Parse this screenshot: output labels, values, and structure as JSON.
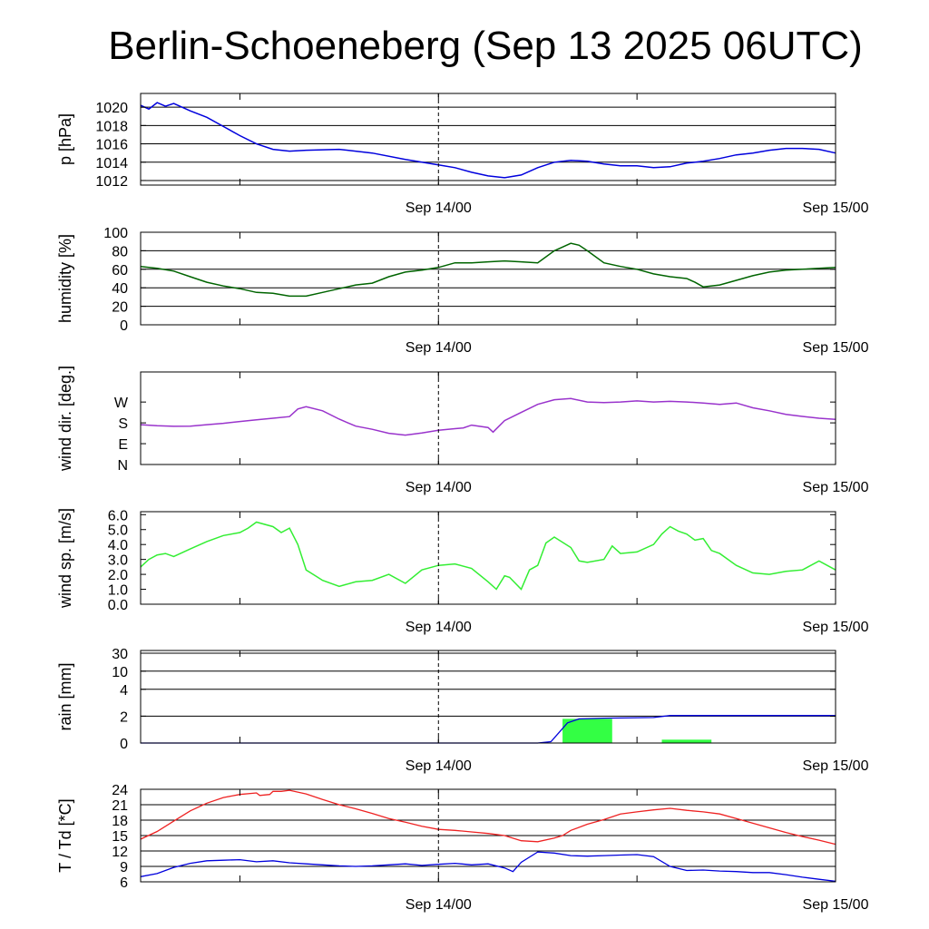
{
  "title": "Berlin-Schoeneberg (Sep 13 2025 06UTC)",
  "x_axis": {
    "start": "Sep 13 06UTC",
    "end": "Sep 15 00UTC",
    "tick_labels": [
      "Sep 14/00",
      "Sep 15/00"
    ],
    "tick_hours": [
      18,
      42
    ],
    "minor_tick_hours": [
      6,
      30
    ],
    "total_hours": 42
  },
  "chart_data": [
    {
      "type": "line",
      "id": "pressure",
      "ylabel": "p [hPa]",
      "ylim": [
        1011.5,
        1021.5
      ],
      "yticks": [
        1012,
        1014,
        1016,
        1018,
        1020
      ],
      "ytick_labels": [
        "1012",
        "1014",
        "1016",
        "1018",
        "1020"
      ],
      "grid": true,
      "color": "#0000dd",
      "x": [
        0,
        0.5,
        1,
        1.5,
        2,
        3,
        4,
        5,
        6,
        7,
        8,
        9,
        10,
        12,
        14,
        16,
        18,
        19,
        20,
        21,
        22,
        23,
        24,
        25,
        26,
        27,
        28,
        29,
        30,
        31,
        32,
        33,
        34,
        35,
        36,
        37,
        38,
        39,
        40,
        41,
        42
      ],
      "values": [
        1020.2,
        1019.8,
        1020.5,
        1020.1,
        1020.4,
        1019.6,
        1018.9,
        1017.9,
        1016.9,
        1016.0,
        1015.4,
        1015.2,
        1015.3,
        1015.4,
        1015.0,
        1014.3,
        1013.7,
        1013.4,
        1012.9,
        1012.5,
        1012.3,
        1012.6,
        1013.4,
        1014.0,
        1014.2,
        1014.1,
        1013.8,
        1013.6,
        1013.6,
        1013.4,
        1013.5,
        1013.9,
        1014.1,
        1014.4,
        1014.8,
        1015.0,
        1015.3,
        1015.5,
        1015.5,
        1015.4,
        1015.0
      ]
    },
    {
      "type": "line",
      "id": "humidity",
      "ylabel": "humidity [%]",
      "ylim": [
        0,
        100
      ],
      "yticks": [
        0,
        20,
        40,
        60,
        80,
        100
      ],
      "ytick_labels": [
        "0",
        "20",
        "40",
        "60",
        "80",
        "100"
      ],
      "grid": true,
      "color": "#006400",
      "x": [
        0,
        1,
        2,
        3,
        4,
        5,
        6,
        7,
        8,
        9,
        10,
        11,
        12,
        13,
        14,
        15,
        16,
        17,
        18,
        19,
        20,
        21,
        22,
        23,
        24,
        25,
        25.5,
        26,
        26.5,
        27,
        28,
        29,
        30,
        31,
        32,
        33,
        33.5,
        34,
        35,
        36,
        37,
        38,
        39,
        40,
        41,
        42
      ],
      "values": [
        63,
        61,
        58,
        52,
        46,
        42,
        39,
        35,
        34,
        31,
        31,
        35,
        39,
        43,
        45,
        52,
        57,
        59,
        62,
        67,
        67,
        68,
        69,
        68,
        67,
        80,
        84,
        88,
        86,
        80,
        67,
        63,
        60,
        55,
        52,
        50,
        46,
        41,
        43,
        48,
        53,
        57,
        59,
        60,
        61,
        62
      ]
    },
    {
      "type": "line",
      "id": "wind_direction",
      "ylabel": "wind dir. [deg.]",
      "ylim": [
        0,
        400
      ],
      "yticks": [
        0,
        90,
        180,
        270
      ],
      "ytick_labels": [
        "N",
        "E",
        "S",
        "W"
      ],
      "grid": false,
      "color": "#9933cc",
      "x": [
        0,
        1,
        2,
        3,
        4,
        5,
        6,
        7,
        8,
        9,
        9.5,
        10,
        11,
        12,
        13,
        14,
        15,
        16,
        17,
        18,
        19,
        19.5,
        20,
        21,
        21.3,
        22,
        23,
        24,
        25,
        26,
        27,
        28,
        29,
        30,
        31,
        32,
        33,
        34,
        35,
        36,
        37,
        38,
        39,
        40,
        41,
        42
      ],
      "values": [
        172,
        168,
        165,
        166,
        172,
        178,
        186,
        193,
        200,
        207,
        240,
        250,
        232,
        196,
        166,
        152,
        135,
        127,
        136,
        148,
        155,
        158,
        170,
        160,
        140,
        190,
        225,
        260,
        280,
        285,
        270,
        268,
        270,
        275,
        270,
        273,
        270,
        266,
        260,
        266,
        245,
        232,
        217,
        208,
        200,
        195
      ]
    },
    {
      "type": "line",
      "id": "wind_speed",
      "ylabel": "wind sp. [m/s]",
      "ylim": [
        0,
        6.2
      ],
      "yticks": [
        0,
        1,
        2,
        3,
        4,
        5,
        6
      ],
      "ytick_labels": [
        "0.0",
        "1.0",
        "2.0",
        "3.0",
        "4.0",
        "5.0",
        "6.0"
      ],
      "grid": false,
      "color": "#33ee33",
      "x": [
        0,
        0.5,
        1,
        1.5,
        2,
        3,
        4,
        5,
        6,
        6.5,
        7,
        8,
        8.5,
        9,
        9.5,
        10,
        11,
        12,
        13,
        14,
        15,
        16,
        17,
        18,
        19,
        20,
        21,
        21.5,
        22,
        22.3,
        23,
        23.5,
        24,
        24.5,
        25,
        26,
        26.5,
        27,
        28,
        28.5,
        29,
        30,
        31,
        31.5,
        32,
        32.5,
        33,
        33.5,
        34,
        34.5,
        35,
        36,
        37,
        38,
        39,
        40,
        41,
        42
      ],
      "values": [
        2.5,
        3.0,
        3.3,
        3.4,
        3.2,
        3.7,
        4.2,
        4.6,
        4.8,
        5.1,
        5.5,
        5.2,
        4.8,
        5.1,
        4.0,
        2.3,
        1.6,
        1.2,
        1.5,
        1.6,
        2.0,
        1.4,
        2.3,
        2.6,
        2.7,
        2.4,
        1.5,
        1.0,
        1.9,
        1.8,
        1.0,
        2.3,
        2.6,
        4.1,
        4.5,
        3.8,
        2.9,
        2.8,
        3.0,
        3.9,
        3.4,
        3.5,
        4.0,
        4.7,
        5.2,
        4.9,
        4.7,
        4.3,
        4.4,
        3.6,
        3.4,
        2.6,
        2.1,
        2.0,
        2.2,
        2.3,
        2.9,
        2.3
      ]
    },
    {
      "type": "bar",
      "id": "rain",
      "ylabel": "rain [mm]",
      "yticks": [
        0,
        2,
        4,
        10,
        30
      ],
      "ytick_labels": [
        "0",
        "2",
        "4",
        "10",
        "30"
      ],
      "grid": true,
      "bar_color": "#33ff44",
      "bars": [
        {
          "start": 25.5,
          "end": 28.5,
          "value": 1.8
        },
        {
          "start": 31.5,
          "end": 34.5,
          "value": 0.25
        }
      ],
      "cumulative_color": "#0000dd",
      "cumulative_x": [
        0,
        24,
        24.8,
        25.3,
        25.8,
        26.5,
        28,
        31,
        32,
        42
      ],
      "cumulative_values": [
        0,
        0,
        0.1,
        0.8,
        1.5,
        1.8,
        1.85,
        1.9,
        2.05,
        2.05
      ]
    },
    {
      "type": "line",
      "id": "temperature_dewpoint",
      "ylabel": "T / Td [*C]",
      "ylim": [
        6,
        24
      ],
      "yticks": [
        6,
        9,
        12,
        15,
        18,
        21,
        24
      ],
      "ytick_labels": [
        "6",
        "9",
        "12",
        "15",
        "18",
        "21",
        "24"
      ],
      "grid": true,
      "series": [
        {
          "color": "#ee2222",
          "x": [
            0,
            1,
            2,
            3,
            4,
            5,
            6,
            7,
            7.2,
            7.8,
            8,
            8.5,
            9,
            10,
            11,
            12,
            13,
            14,
            15,
            16,
            17,
            18,
            19,
            20,
            21,
            22,
            23,
            24,
            25,
            25.5,
            26,
            27,
            28,
            29,
            30,
            31,
            32,
            33,
            34,
            35,
            36,
            37,
            38,
            39,
            40,
            41,
            42
          ],
          "values": [
            14.3,
            15.8,
            17.8,
            19.8,
            21.3,
            22.4,
            23.0,
            23.3,
            22.8,
            23.0,
            23.6,
            23.6,
            23.8,
            23.1,
            22.0,
            21.0,
            20.2,
            19.3,
            18.3,
            17.6,
            16.8,
            16.2,
            16.0,
            15.7,
            15.4,
            15.0,
            14.0,
            13.8,
            14.5,
            15.0,
            16.0,
            17.2,
            18.1,
            19.2,
            19.6,
            20.0,
            20.3,
            19.9,
            19.6,
            19.2,
            18.3,
            17.4,
            16.5,
            15.6,
            14.8,
            14.1,
            13.3
          ]
        },
        {
          "color": "#0000dd",
          "x": [
            0,
            1,
            2,
            3,
            4,
            5,
            6,
            7,
            8,
            9,
            10,
            11,
            12,
            13,
            14,
            15,
            16,
            17,
            18,
            19,
            20,
            21,
            22,
            22.5,
            23,
            24,
            25,
            26,
            27,
            28,
            29,
            30,
            31,
            32,
            33,
            34,
            35,
            36,
            37,
            38,
            39,
            40,
            41,
            42
          ],
          "values": [
            7.0,
            7.6,
            8.8,
            9.6,
            10.1,
            10.2,
            10.3,
            9.9,
            10.1,
            9.7,
            9.5,
            9.3,
            9.1,
            9.0,
            9.1,
            9.3,
            9.5,
            9.2,
            9.4,
            9.6,
            9.3,
            9.5,
            8.7,
            8.0,
            9.8,
            11.8,
            11.6,
            11.1,
            11.0,
            11.1,
            11.2,
            11.3,
            10.9,
            9.0,
            8.2,
            8.3,
            8.1,
            8.0,
            7.8,
            7.8,
            7.4,
            6.9,
            6.5,
            6.1
          ]
        }
      ]
    }
  ]
}
